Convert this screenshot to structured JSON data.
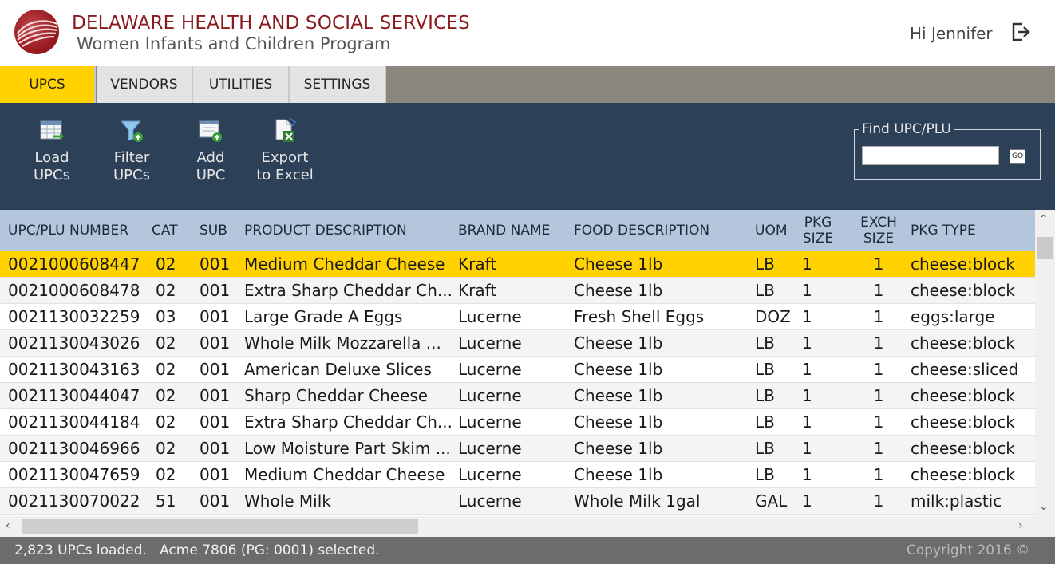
{
  "header": {
    "org_title": "DELAWARE HEALTH AND SOCIAL SERVICES",
    "org_subtitle": "Women Infants and Children Program",
    "greeting": "Hi Jennifer"
  },
  "tabs": [
    {
      "label": "UPCS",
      "active": true
    },
    {
      "label": "VENDORS",
      "active": false
    },
    {
      "label": "UTILITIES",
      "active": false
    },
    {
      "label": "SETTINGS",
      "active": false
    }
  ],
  "toolbar": {
    "load": {
      "line1": "Load",
      "line2": "UPCs"
    },
    "filter": {
      "line1": "Filter",
      "line2": "UPCs"
    },
    "add": {
      "line1": "Add",
      "line2": "UPC"
    },
    "export": {
      "line1": "Export",
      "line2": "to Excel"
    },
    "find_label": "Find UPC/PLU",
    "find_value": "",
    "go_label": "GO"
  },
  "table": {
    "headers": {
      "upc": "UPC/PLU NUMBER",
      "cat": "CAT",
      "sub": "SUB",
      "product": "PRODUCT DESCRIPTION",
      "brand": "BRAND NAME",
      "food": "FOOD DESCRIPTION",
      "uom": "UOM",
      "pkg_size_1": "PKG",
      "pkg_size_2": "SIZE",
      "exch_size_1": "EXCH",
      "exch_size_2": "SIZE",
      "pkg_type": "PKG TYPE"
    },
    "rows": [
      {
        "upc": "0021000608447",
        "cat": "02",
        "sub": "001",
        "product": "Medium Cheddar Cheese",
        "brand": "Kraft",
        "food": "Cheese 1lb",
        "uom": "LB",
        "pkg_size": "1",
        "exch_size": "1",
        "pkg_type": "cheese:block"
      },
      {
        "upc": "0021000608478",
        "cat": "02",
        "sub": "001",
        "product": "Extra Sharp Cheddar Ch...",
        "brand": "Kraft",
        "food": "Cheese 1lb",
        "uom": "LB",
        "pkg_size": "1",
        "exch_size": "1",
        "pkg_type": "cheese:block"
      },
      {
        "upc": "0021130032259",
        "cat": "03",
        "sub": "001",
        "product": "Large Grade A Eggs",
        "brand": "Lucerne",
        "food": "Fresh Shell Eggs",
        "uom": "DOZ",
        "pkg_size": "1",
        "exch_size": "1",
        "pkg_type": "eggs:large"
      },
      {
        "upc": "0021130043026",
        "cat": "02",
        "sub": "001",
        "product": "Whole Milk Mozzarella ...",
        "brand": "Lucerne",
        "food": "Cheese 1lb",
        "uom": "LB",
        "pkg_size": "1",
        "exch_size": "1",
        "pkg_type": "cheese:block"
      },
      {
        "upc": "0021130043163",
        "cat": "02",
        "sub": "001",
        "product": "American Deluxe Slices",
        "brand": "Lucerne",
        "food": "Cheese 1lb",
        "uom": "LB",
        "pkg_size": "1",
        "exch_size": "1",
        "pkg_type": "cheese:sliced"
      },
      {
        "upc": "0021130044047",
        "cat": "02",
        "sub": "001",
        "product": "Sharp Cheddar Cheese",
        "brand": "Lucerne",
        "food": "Cheese 1lb",
        "uom": "LB",
        "pkg_size": "1",
        "exch_size": "1",
        "pkg_type": "cheese:block"
      },
      {
        "upc": "0021130044184",
        "cat": "02",
        "sub": "001",
        "product": "Extra Sharp Cheddar Ch...",
        "brand": "Lucerne",
        "food": "Cheese 1lb",
        "uom": "LB",
        "pkg_size": "1",
        "exch_size": "1",
        "pkg_type": "cheese:block"
      },
      {
        "upc": "0021130046966",
        "cat": "02",
        "sub": "001",
        "product": "Low Moisture Part Skim ...",
        "brand": "Lucerne",
        "food": "Cheese 1lb",
        "uom": "LB",
        "pkg_size": "1",
        "exch_size": "1",
        "pkg_type": "cheese:block"
      },
      {
        "upc": "0021130047659",
        "cat": "02",
        "sub": "001",
        "product": "Medium Cheddar Cheese",
        "brand": "Lucerne",
        "food": "Cheese 1lb",
        "uom": "LB",
        "pkg_size": "1",
        "exch_size": "1",
        "pkg_type": "cheese:block"
      },
      {
        "upc": "0021130070022",
        "cat": "51",
        "sub": "001",
        "product": "Whole Milk",
        "brand": "Lucerne",
        "food": "Whole Milk 1gal",
        "uom": "GAL",
        "pkg_size": "1",
        "exch_size": "1",
        "pkg_type": "milk:plastic"
      }
    ],
    "selected_row": 0
  },
  "status": {
    "message": "2,823 UPCs loaded.   Acme 7806 (PG: 0001) selected.",
    "copyright": "Copyright 2016 ©"
  },
  "icons": {
    "logo": "dhss-logo",
    "logout": "logout-icon",
    "load": "load-table-icon",
    "filter": "filter-icon",
    "add": "add-upc-icon",
    "export": "excel-export-icon"
  },
  "colors": {
    "accent": "#ffd200",
    "toolbar_bg": "#2c4058",
    "header_row_bg": "#b4c6dc",
    "brand_red": "#8a1a1d",
    "status_bg": "#6c6c6c"
  }
}
